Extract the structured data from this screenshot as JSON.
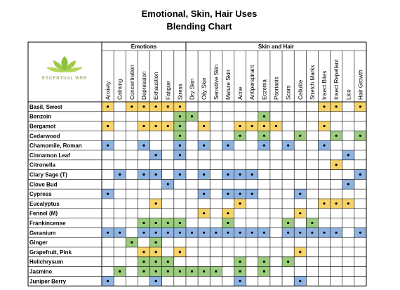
{
  "header": {
    "title": "Emotional, Skin, Hair Uses",
    "subtitle": "Blending Chart",
    "logo_text": "ESCENTUAL WEB"
  },
  "groups": [
    {
      "label": "Emotions",
      "span": 7
    },
    {
      "label": "Skin and Hair",
      "span": 15
    }
  ],
  "columns": [
    "Anxiety",
    "Calming",
    "Concentration",
    "Depression",
    "Exhaustion",
    "Fatigue",
    "Stress",
    "Dry Skin",
    "Oily Skin",
    "Sensitive Skin",
    "Mature Skin",
    "Acne",
    "Antiperspirant",
    "Eczema",
    "Psoriasis",
    "Scars",
    "Cellulite",
    "Stretch Marks",
    "Insect Bites",
    "Insect Repellant",
    "Lice",
    "Hair Growth"
  ],
  "colors": {
    "Y": "#f7d46a",
    "G": "#9ccc7e",
    "B": "#8fb4e3"
  },
  "rows": [
    {
      "label": "Basil, Sweet",
      "marks": [
        "Y",
        null,
        "Y",
        "Y",
        "Y",
        "Y",
        "Y",
        null,
        null,
        null,
        null,
        null,
        null,
        null,
        null,
        null,
        null,
        null,
        "Y",
        "Y",
        null,
        "Y"
      ]
    },
    {
      "label": "Benzoin",
      "marks": [
        null,
        null,
        null,
        null,
        null,
        null,
        "G",
        "G",
        null,
        null,
        null,
        null,
        null,
        "G",
        null,
        null,
        null,
        null,
        null,
        null,
        null,
        null
      ]
    },
    {
      "label": "Bergamot",
      "marks": [
        "Y",
        null,
        null,
        "Y",
        "Y",
        "Y",
        "G",
        null,
        "Y",
        null,
        null,
        "Y",
        "Y",
        "Y",
        "Y",
        null,
        null,
        null,
        "Y",
        null,
        null,
        null
      ]
    },
    {
      "label": "Cedarwood",
      "marks": [
        null,
        null,
        null,
        null,
        null,
        null,
        "G",
        null,
        null,
        null,
        null,
        "G",
        null,
        "G",
        null,
        null,
        "G",
        null,
        null,
        "G",
        null,
        "G"
      ]
    },
    {
      "label": "Chamomile, Roman",
      "marks": [
        "B",
        null,
        null,
        "B",
        null,
        null,
        "B",
        null,
        "B",
        null,
        "B",
        null,
        null,
        "B",
        null,
        "B",
        null,
        null,
        "B",
        null,
        null,
        null
      ]
    },
    {
      "label": "Cinnamon Leaf",
      "marks": [
        null,
        null,
        null,
        null,
        "B",
        null,
        "B",
        null,
        null,
        null,
        null,
        null,
        null,
        null,
        null,
        null,
        null,
        null,
        null,
        null,
        "B",
        null
      ]
    },
    {
      "label": "Citronella",
      "marks": [
        null,
        null,
        null,
        null,
        null,
        null,
        null,
        null,
        null,
        null,
        null,
        null,
        null,
        null,
        null,
        null,
        null,
        null,
        null,
        "Y",
        null,
        null
      ]
    },
    {
      "label": "Clary Sage (T)",
      "marks": [
        null,
        "B",
        null,
        "B",
        "B",
        null,
        "B",
        null,
        "B",
        null,
        "B",
        "B",
        "B",
        null,
        null,
        null,
        null,
        null,
        null,
        null,
        null,
        "B"
      ]
    },
    {
      "label": "Clove Bud",
      "marks": [
        null,
        null,
        null,
        null,
        null,
        "B",
        null,
        null,
        null,
        null,
        null,
        null,
        null,
        null,
        null,
        null,
        null,
        null,
        null,
        null,
        "B",
        null
      ]
    },
    {
      "label": "Cypress",
      "marks": [
        "B",
        null,
        null,
        null,
        null,
        null,
        null,
        null,
        "B",
        null,
        "B",
        "B",
        "B",
        null,
        null,
        null,
        "B",
        null,
        null,
        null,
        null,
        null
      ]
    },
    {
      "label": "Eucalyptus",
      "marks": [
        null,
        null,
        null,
        null,
        "Y",
        null,
        null,
        null,
        null,
        null,
        null,
        "Y",
        null,
        null,
        null,
        null,
        null,
        null,
        "Y",
        "Y",
        "Y",
        null
      ]
    },
    {
      "label": "Fennel (M)",
      "marks": [
        null,
        null,
        null,
        null,
        null,
        null,
        null,
        null,
        "Y",
        null,
        "Y",
        null,
        null,
        null,
        null,
        null,
        "Y",
        null,
        null,
        null,
        null,
        null
      ]
    },
    {
      "label": "Frankincense",
      "marks": [
        null,
        null,
        null,
        "G",
        "G",
        "G",
        "G",
        null,
        null,
        null,
        "G",
        null,
        null,
        null,
        null,
        "G",
        null,
        "G",
        null,
        null,
        null,
        null
      ]
    },
    {
      "label": "Geranium",
      "marks": [
        "B",
        "B",
        null,
        "B",
        "B",
        "B",
        "B",
        "B",
        "B",
        "B",
        "B",
        "B",
        "B",
        "B",
        null,
        "B",
        "B",
        "B",
        "B",
        "B",
        null,
        "B"
      ]
    },
    {
      "label": "Ginger",
      "marks": [
        null,
        null,
        "G",
        null,
        "G",
        null,
        null,
        null,
        null,
        null,
        null,
        null,
        null,
        null,
        null,
        null,
        null,
        null,
        null,
        null,
        null,
        null
      ]
    },
    {
      "label": "Grapefruit, Pink",
      "marks": [
        null,
        null,
        null,
        "Y",
        "Y",
        null,
        "Y",
        null,
        null,
        null,
        null,
        null,
        null,
        null,
        null,
        null,
        "Y",
        null,
        null,
        null,
        null,
        null
      ]
    },
    {
      "label": "Helichrysum",
      "marks": [
        null,
        null,
        null,
        "G",
        "G",
        "G",
        null,
        null,
        null,
        null,
        null,
        "G",
        null,
        "G",
        null,
        "G",
        null,
        null,
        null,
        null,
        null,
        null
      ]
    },
    {
      "label": "Jasmine",
      "marks": [
        null,
        "G",
        null,
        "G",
        "G",
        "G",
        "G",
        "G",
        "G",
        "G",
        null,
        "G",
        null,
        "G",
        null,
        null,
        null,
        null,
        null,
        null,
        null,
        null
      ]
    },
    {
      "label": "Juniper Berry",
      "marks": [
        "B",
        null,
        null,
        null,
        "B",
        null,
        null,
        null,
        null,
        null,
        null,
        "B",
        null,
        null,
        null,
        null,
        "B",
        null,
        null,
        null,
        null,
        null
      ]
    }
  ]
}
